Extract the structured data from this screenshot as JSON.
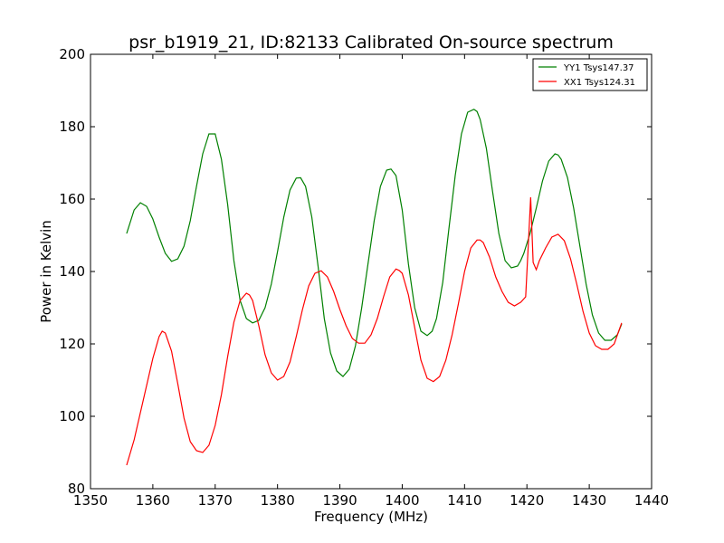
{
  "chart_data": {
    "type": "line",
    "title": "psr_b1919_21, ID:82133 Calibrated On-source spectrum",
    "xlabel": "Frequency (MHz)",
    "ylabel": "Power in Kelvin",
    "xlim": [
      1350,
      1440
    ],
    "ylim": [
      80,
      200
    ],
    "xticks": [
      "1350",
      "1360",
      "1370",
      "1380",
      "1390",
      "1400",
      "1410",
      "1420",
      "1430",
      "1440"
    ],
    "yticks": [
      "80",
      "100",
      "120",
      "140",
      "160",
      "180",
      "200"
    ],
    "grid": false,
    "legend_position": "top-right",
    "series": [
      {
        "name": "YY1 Tsys147.37",
        "color": "#008000",
        "x": [
          1355.8,
          1357.0,
          1358.0,
          1359.0,
          1360.0,
          1361.0,
          1362.0,
          1363.0,
          1364.0,
          1365.0,
          1366.0,
          1367.0,
          1368.0,
          1369.0,
          1370.0,
          1371.0,
          1372.0,
          1373.0,
          1374.0,
          1375.0,
          1376.0,
          1377.0,
          1378.0,
          1379.0,
          1380.0,
          1381.0,
          1382.0,
          1383.0,
          1383.7,
          1384.5,
          1385.5,
          1386.5,
          1387.5,
          1388.5,
          1389.5,
          1390.5,
          1391.5,
          1392.5,
          1393.5,
          1394.5,
          1395.5,
          1396.5,
          1397.5,
          1398.2,
          1399.0,
          1400.0,
          1401.0,
          1402.0,
          1403.0,
          1404.0,
          1404.8,
          1405.5,
          1406.5,
          1407.5,
          1408.5,
          1409.5,
          1410.5,
          1411.5,
          1412.0,
          1412.5,
          1413.5,
          1414.5,
          1415.5,
          1416.5,
          1417.5,
          1418.5,
          1419.0,
          1419.5,
          1420.5,
          1421.5,
          1422.5,
          1423.5,
          1424.5,
          1425.0,
          1425.5,
          1426.5,
          1427.5,
          1428.5,
          1429.5,
          1430.5,
          1431.5,
          1432.5,
          1433.5,
          1434.5,
          1435.2
        ],
        "y": [
          150.5,
          157.0,
          159.0,
          158.0,
          154.5,
          149.5,
          145.0,
          142.8,
          143.5,
          147.0,
          154.0,
          163.5,
          172.5,
          178.0,
          178.0,
          171.0,
          158.5,
          143.0,
          132.0,
          127.0,
          125.8,
          126.5,
          130.0,
          136.5,
          145.5,
          155.0,
          162.5,
          165.8,
          165.9,
          163.5,
          155.0,
          141.5,
          127.0,
          117.5,
          112.5,
          111.0,
          113.0,
          119.5,
          130.0,
          142.0,
          154.0,
          163.5,
          168.0,
          168.3,
          166.5,
          157.0,
          142.0,
          130.0,
          123.5,
          122.3,
          123.5,
          127.0,
          137.0,
          152.0,
          166.5,
          178.0,
          184.0,
          184.8,
          184.2,
          182.0,
          174.0,
          162.0,
          150.5,
          143.0,
          141.0,
          141.5,
          143.0,
          145.0,
          150.5,
          157.5,
          165.0,
          170.5,
          172.5,
          172.2,
          171.0,
          166.0,
          157.5,
          147.0,
          136.5,
          128.0,
          123.0,
          121.0,
          121.0,
          122.5,
          125.5
        ]
      },
      {
        "name": "XX1 Tsys124.31",
        "color": "#ff0000",
        "x": [
          1355.8,
          1357.0,
          1358.0,
          1359.0,
          1360.0,
          1361.0,
          1361.5,
          1362.0,
          1363.0,
          1364.0,
          1365.0,
          1366.0,
          1367.0,
          1368.0,
          1369.0,
          1370.0,
          1371.0,
          1372.0,
          1373.0,
          1374.0,
          1375.0,
          1375.5,
          1376.0,
          1377.0,
          1378.0,
          1379.0,
          1380.0,
          1381.0,
          1382.0,
          1383.0,
          1384.0,
          1385.0,
          1386.0,
          1387.0,
          1388.0,
          1389.0,
          1390.0,
          1391.0,
          1392.0,
          1393.0,
          1394.0,
          1395.0,
          1396.0,
          1397.0,
          1398.0,
          1399.0,
          1399.5,
          1400.0,
          1401.0,
          1402.0,
          1403.0,
          1404.0,
          1405.0,
          1406.0,
          1407.0,
          1408.0,
          1409.0,
          1410.0,
          1411.0,
          1412.0,
          1412.5,
          1413.0,
          1414.0,
          1415.0,
          1416.0,
          1417.0,
          1418.0,
          1419.0,
          1419.8,
          1420.3,
          1420.6,
          1421.0,
          1421.5,
          1422.0,
          1423.0,
          1424.0,
          1425.0,
          1426.0,
          1427.0,
          1428.0,
          1429.0,
          1430.0,
          1431.0,
          1432.0,
          1433.0,
          1434.0,
          1435.2
        ],
        "y": [
          86.5,
          93.5,
          101.0,
          108.5,
          116.0,
          122.0,
          123.5,
          123.0,
          118.0,
          109.0,
          99.5,
          93.0,
          90.5,
          90.0,
          92.0,
          97.5,
          106.0,
          116.5,
          126.0,
          132.0,
          134.0,
          133.5,
          132.0,
          125.0,
          117.0,
          112.0,
          110.0,
          111.0,
          115.0,
          122.0,
          129.5,
          136.0,
          139.5,
          140.2,
          138.5,
          134.5,
          129.5,
          125.0,
          121.5,
          120.2,
          120.2,
          122.5,
          127.0,
          133.0,
          138.5,
          140.7,
          140.3,
          139.5,
          133.5,
          124.5,
          115.5,
          110.5,
          109.6,
          111.0,
          115.5,
          122.5,
          131.0,
          140.0,
          146.5,
          148.7,
          148.7,
          148.0,
          144.0,
          138.5,
          134.5,
          131.5,
          130.5,
          131.5,
          133.0,
          150.0,
          160.5,
          142.5,
          140.5,
          143.0,
          146.5,
          149.5,
          150.3,
          148.5,
          143.5,
          136.5,
          129.0,
          123.0,
          119.5,
          118.5,
          118.5,
          120.0,
          125.8
        ]
      }
    ]
  }
}
